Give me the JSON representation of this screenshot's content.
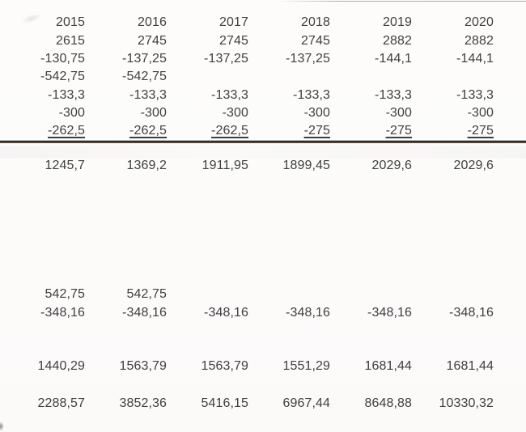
{
  "document": {
    "kind": "scanned-spreadsheet-table",
    "decimal_separator": ","
  },
  "colors": {
    "paper": "#fdfcfb",
    "text": "#3f3f41",
    "sum_rule": "#2d2d30"
  },
  "table": {
    "column_headers": [
      "2015",
      "2016",
      "2017",
      "2018",
      "2019",
      "2020"
    ],
    "rows": [
      {
        "role": "year-header",
        "underline": false,
        "values": [
          "2015",
          "2016",
          "2017",
          "2018",
          "2019",
          "2020"
        ]
      },
      {
        "role": "value-row",
        "underline": false,
        "values": [
          "2615",
          "2745",
          "2745",
          "2745",
          "2882",
          "2882"
        ]
      },
      {
        "role": "value-row",
        "underline": false,
        "values": [
          "-130,75",
          "-137,25",
          "-137,25",
          "-137,25",
          "-144,1",
          "-144,1"
        ]
      },
      {
        "role": "value-row",
        "underline": false,
        "values": [
          "-542,75",
          "-542,75",
          "",
          "",
          "",
          ""
        ]
      },
      {
        "role": "value-row",
        "underline": false,
        "values": [
          "-133,3",
          "-133,3",
          "-133,3",
          "-133,3",
          "-133,3",
          "-133,3"
        ]
      },
      {
        "role": "value-row",
        "underline": false,
        "values": [
          "-300",
          "-300",
          "-300",
          "-300",
          "-300",
          "-300"
        ]
      },
      {
        "role": "subtotal-row",
        "underline": true,
        "values": [
          "-262,5",
          "-262,5",
          "-262,5",
          "-275",
          "-275",
          "-275"
        ]
      },
      {
        "role": "result-row",
        "underline": false,
        "values": [
          "1245,7",
          "1369,2",
          "1911,95",
          "1899,45",
          "2029,6",
          "2029,6"
        ]
      },
      {
        "role": "value-row",
        "underline": false,
        "values": [
          "542,75",
          "542,75",
          "",
          "",
          "",
          ""
        ]
      },
      {
        "role": "value-row",
        "underline": false,
        "values": [
          "-348,16",
          "-348,16",
          "-348,16",
          "-348,16",
          "-348,16",
          "-348,16"
        ]
      },
      {
        "role": "result-row",
        "underline": false,
        "values": [
          "1440,29",
          "1563,79",
          "1563,79",
          "1551,29",
          "1681,44",
          "1681,44"
        ]
      },
      {
        "role": "cumulative-row",
        "underline": false,
        "values": [
          "2288,57",
          "3852,36",
          "5416,15",
          "6967,44",
          "8648,88",
          "10330,32"
        ]
      }
    ]
  }
}
